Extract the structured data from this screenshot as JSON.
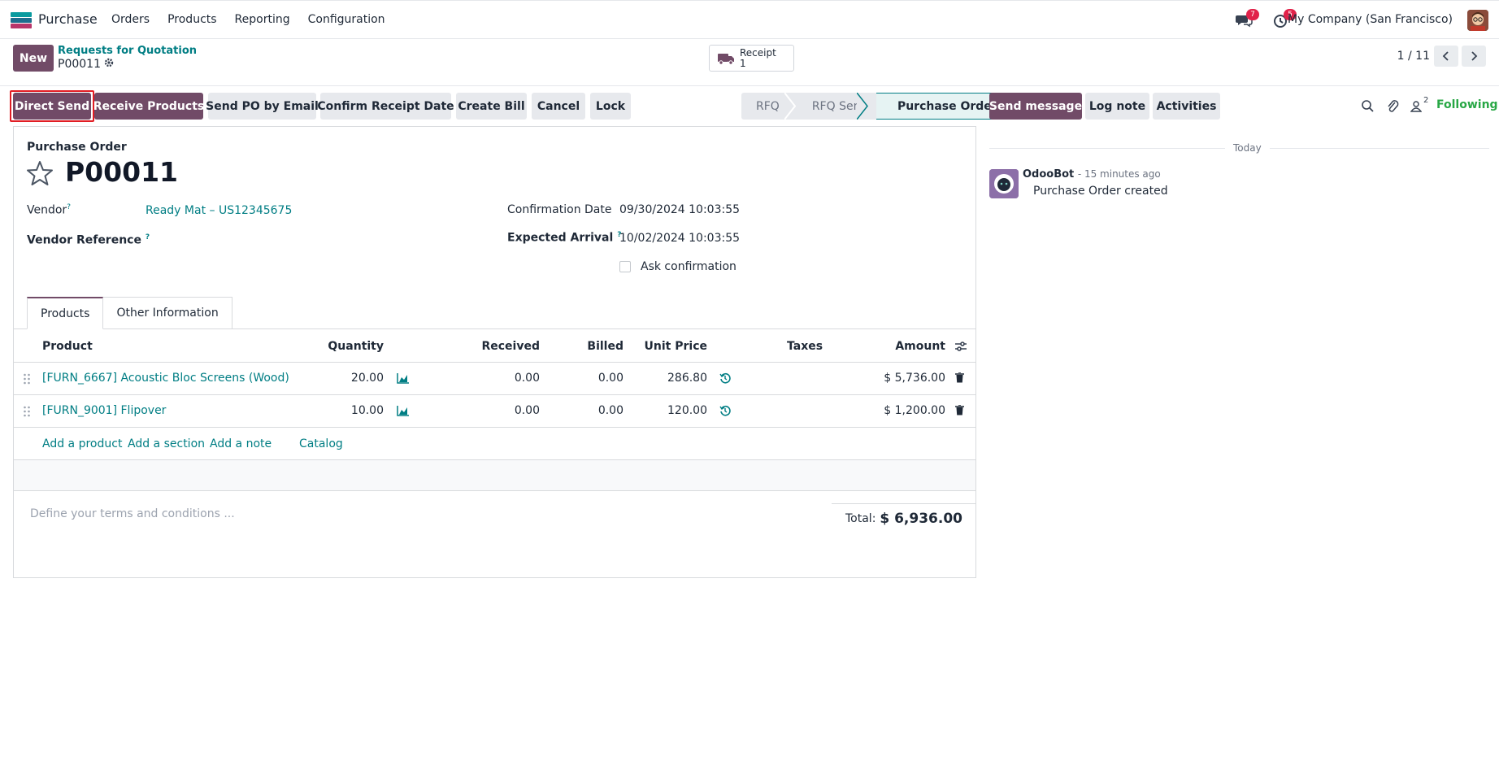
{
  "navbar": {
    "app_name": "Purchase",
    "menu": [
      "Orders",
      "Products",
      "Reporting",
      "Configuration"
    ],
    "messages_count": "7",
    "activities_count": "5",
    "company": "My Company (San Francisco)"
  },
  "control_panel": {
    "new_label": "New",
    "breadcrumb_parent": "Requests for Quotation",
    "breadcrumb_current": "P00011",
    "receipt_label": "Receipt",
    "receipt_count": "1",
    "pager": "1 / 11"
  },
  "actions": {
    "direct_send": "Direct Send",
    "receive_products": "Receive Products",
    "send_po_email": "Send PO by Email",
    "confirm_receipt_date": "Confirm Receipt Date",
    "create_bill": "Create Bill",
    "cancel": "Cancel",
    "lock": "Lock"
  },
  "status_stages": [
    "RFQ",
    "RFQ Sent",
    "Purchase Order"
  ],
  "chatter_tools": {
    "send_message": "Send message",
    "log_note": "Log note",
    "activities": "Activities",
    "followers_count": "2",
    "following": "Following"
  },
  "form": {
    "title_label": "Purchase Order",
    "name": "P00011",
    "vendor_label": "Vendor",
    "vendor_value": "Ready Mat – US12345675",
    "vendor_ref_label": "Vendor Reference",
    "confirmation_date_label": "Confirmation Date",
    "confirmation_date_value": "09/30/2024 10:03:55",
    "expected_arrival_label": "Expected Arrival",
    "expected_arrival_value": "10/02/2024 10:03:55",
    "ask_confirmation_label": "Ask confirmation",
    "help_mark": "?"
  },
  "tabs": [
    "Products",
    "Other Information"
  ],
  "table": {
    "headers": {
      "product": "Product",
      "quantity": "Quantity",
      "received": "Received",
      "billed": "Billed",
      "unit_price": "Unit Price",
      "taxes": "Taxes",
      "amount": "Amount"
    },
    "rows": [
      {
        "product": "[FURN_6667] Acoustic Bloc Screens (Wood)",
        "quantity": "20.00",
        "received": "0.00",
        "billed": "0.00",
        "unit_price": "286.80",
        "taxes": "",
        "amount": "$ 5,736.00"
      },
      {
        "product": "[FURN_9001] Flipover",
        "quantity": "10.00",
        "received": "0.00",
        "billed": "0.00",
        "unit_price": "120.00",
        "taxes": "",
        "amount": "$ 1,200.00"
      }
    ],
    "add_product": "Add a product",
    "add_section": "Add a section",
    "add_note": "Add a note",
    "catalog": "Catalog"
  },
  "footer": {
    "terms_placeholder": "Define your terms and conditions ...",
    "total_label": "Total:",
    "total_value": "$ 6,936.00"
  },
  "chatter": {
    "date_separator": "Today",
    "author": "OdooBot",
    "time": "- 15 minutes ago",
    "body": "Purchase Order created"
  },
  "colors": {
    "brand": "#714b67",
    "link": "#017e84",
    "badge": "#e1224a",
    "following": "#28a745"
  }
}
